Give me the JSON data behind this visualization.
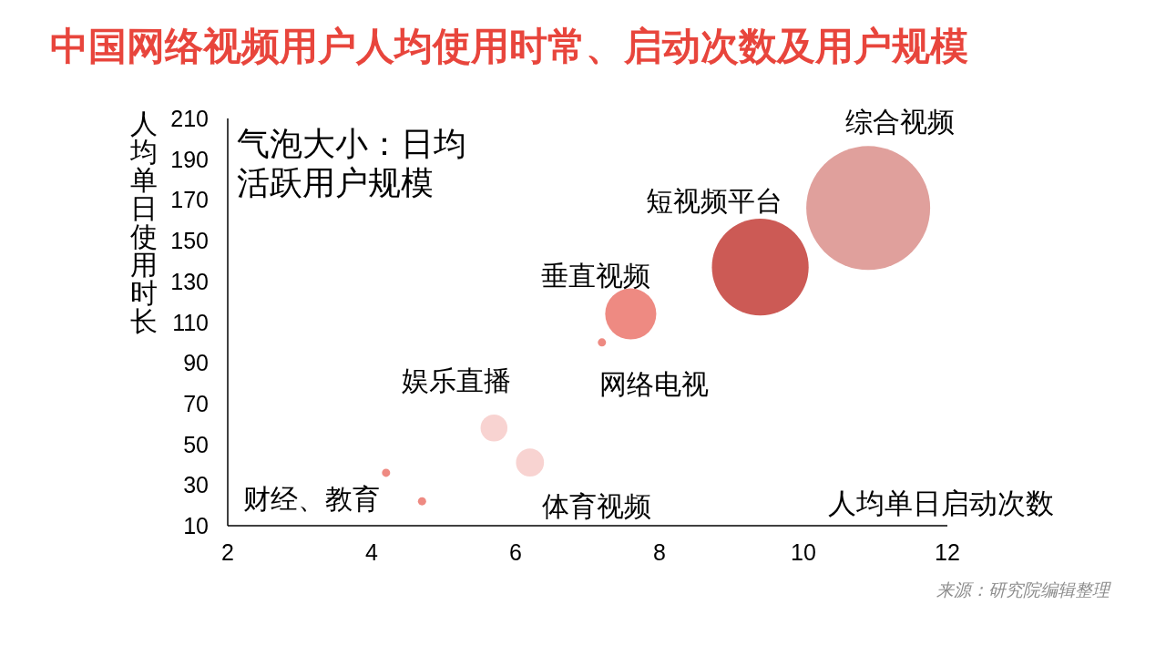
{
  "chart_data": {
    "type": "bubble",
    "title": "中国网络视频用户人均使用时常、启动次数及用户规模",
    "xlabel": "人均单日启动次数",
    "ylabel": "人均单日使用时长",
    "annotations": [
      "气泡大小：日均活跃用户规模",
      "来源：研究院编辑整理"
    ],
    "xlim": [
      2,
      12
    ],
    "xticks": [
      2,
      4,
      6,
      8,
      10,
      12
    ],
    "ylim": [
      10,
      210
    ],
    "yticks": [
      10,
      30,
      50,
      70,
      90,
      110,
      130,
      150,
      170,
      190,
      210
    ],
    "series": [
      {
        "name": "综合视频",
        "color": "#e0a09c",
        "x": [
          10.9
        ],
        "values": [
          166
        ],
        "sizes": [
          1
        ]
      },
      {
        "name": "短视频平台",
        "color": "#cc5a55",
        "x": [
          9.4
        ],
        "values": [
          137
        ],
        "sizes": [
          0.61
        ]
      },
      {
        "name": "垂直视频",
        "color": "#ee8a82",
        "x": [
          7.6
        ],
        "values": [
          114
        ],
        "sizes": [
          0.17
        ]
      },
      {
        "name": "网络电视",
        "color": "#ee8a82",
        "x": [
          7.2
        ],
        "values": [
          100
        ],
        "sizes": [
          0.0044
        ]
      },
      {
        "name": "娱乐直播",
        "color": "#f8d3d1",
        "x": [
          5.7
        ],
        "values": [
          58
        ],
        "sizes": [
          0.047
        ]
      },
      {
        "name": "体育视频",
        "color": "#f8d3d1",
        "x": [
          6.2
        ],
        "values": [
          41
        ],
        "sizes": [
          0.051
        ]
      },
      {
        "name": "财经、教育",
        "color": "#ee8a82",
        "x": [
          4.2,
          4.7
        ],
        "values": [
          36,
          22
        ],
        "sizes": [
          0.0044,
          0.0044
        ]
      }
    ]
  }
}
